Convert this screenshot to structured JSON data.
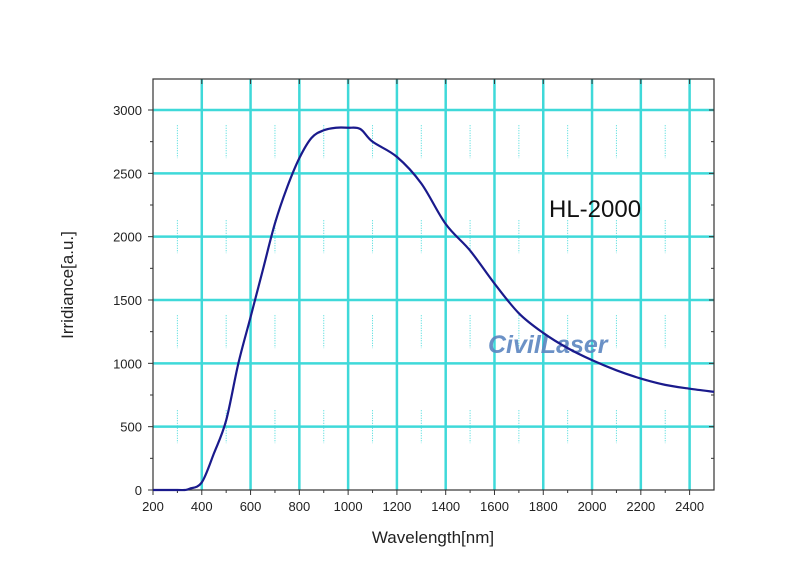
{
  "chart_data": {
    "type": "line",
    "title": "",
    "annotation": "HL-2000",
    "watermark": "CivilLaser",
    "xlabel": "Wavelength[nm]",
    "ylabel": "Irridiance[a.u.]",
    "xlim": [
      200,
      2500
    ],
    "ylim": [
      0,
      3100
    ],
    "xticks": [
      200,
      400,
      600,
      800,
      1000,
      1200,
      1400,
      1600,
      1800,
      2000,
      2200,
      2400
    ],
    "yticks": [
      0,
      500,
      1000,
      1500,
      2000,
      2500,
      3000
    ],
    "grid": true,
    "colors": {
      "line": "#1a1a8c",
      "grid": "#3fd9d9",
      "axis": "#333333",
      "watermark": "#5b86c0"
    },
    "series": [
      {
        "x": [
          200,
          300,
          330,
          350,
          400,
          450,
          500,
          550,
          600,
          650,
          700,
          750,
          800,
          850,
          900,
          950,
          1000,
          1050,
          1100,
          1200,
          1300,
          1400,
          1500,
          1600,
          1700,
          1800,
          1900,
          2000,
          2100,
          2200,
          2300,
          2400,
          2500
        ],
        "y": [
          0,
          0,
          0,
          10,
          60,
          290,
          550,
          1000,
          1365,
          1735,
          2105,
          2390,
          2620,
          2780,
          2840,
          2860,
          2860,
          2850,
          2750,
          2630,
          2420,
          2100,
          1890,
          1630,
          1395,
          1240,
          1120,
          1025,
          945,
          880,
          830,
          800,
          775
        ]
      }
    ]
  }
}
